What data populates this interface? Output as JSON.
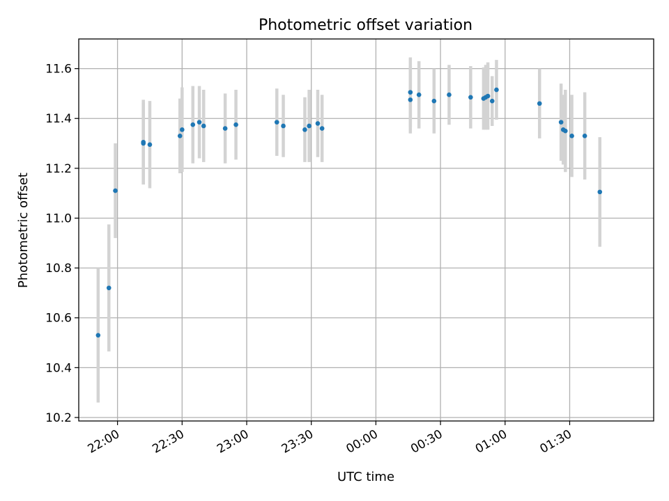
{
  "chart_data": {
    "type": "scatter",
    "title": "Photometric offset variation",
    "xlabel": "UTC time",
    "ylabel": "Photometric offset",
    "grid": true,
    "ylim": [
      10.186,
      11.719
    ],
    "xlim": [
      "21:42",
      "02:09"
    ],
    "yticks": [
      "10.2",
      "10.4",
      "10.6",
      "10.8",
      "11.0",
      "11.2",
      "11.4",
      "11.6"
    ],
    "xticks": [
      "22:00",
      "22:30",
      "23:00",
      "23:30",
      "00:00",
      "00:30",
      "01:00",
      "01:30"
    ],
    "colors": {
      "point": "#1f77b4",
      "errorbar": "#d3d3d3",
      "grid": "#b0b0b0",
      "frame": "#000000"
    },
    "series": [
      {
        "points": [
          {
            "x": "21:51",
            "y": 10.53,
            "err": 0.27
          },
          {
            "x": "21:56",
            "y": 10.72,
            "err": 0.255
          },
          {
            "x": "21:59",
            "y": 11.11,
            "err": 0.19
          },
          {
            "x": "22:12",
            "y": 11.305,
            "err": 0.17
          },
          {
            "x": "22:12",
            "y": 11.3,
            "err": 0.165
          },
          {
            "x": "22:15",
            "y": 11.295,
            "err": 0.175
          },
          {
            "x": "22:29",
            "y": 11.33,
            "err": 0.15
          },
          {
            "x": "22:30",
            "y": 11.355,
            "err": 0.17
          },
          {
            "x": "22:35",
            "y": 11.375,
            "err": 0.155
          },
          {
            "x": "22:38",
            "y": 11.385,
            "err": 0.145
          },
          {
            "x": "22:40",
            "y": 11.37,
            "err": 0.145
          },
          {
            "x": "22:50",
            "y": 11.36,
            "err": 0.14
          },
          {
            "x": "22:55",
            "y": 11.375,
            "err": 0.14
          },
          {
            "x": "23:14",
            "y": 11.385,
            "err": 0.135
          },
          {
            "x": "23:17",
            "y": 11.37,
            "err": 0.125
          },
          {
            "x": "23:27",
            "y": 11.355,
            "err": 0.13
          },
          {
            "x": "23:29",
            "y": 11.37,
            "err": 0.145
          },
          {
            "x": "23:33",
            "y": 11.38,
            "err": 0.135
          },
          {
            "x": "23:35",
            "y": 11.36,
            "err": 0.135
          },
          {
            "x": "00:16",
            "y": 11.475,
            "err": 0.135
          },
          {
            "x": "00:16",
            "y": 11.505,
            "err": 0.14
          },
          {
            "x": "00:20",
            "y": 11.495,
            "err": 0.135
          },
          {
            "x": "00:27",
            "y": 11.47,
            "err": 0.13
          },
          {
            "x": "00:34",
            "y": 11.495,
            "err": 0.12
          },
          {
            "x": "00:44",
            "y": 11.485,
            "err": 0.125
          },
          {
            "x": "00:50",
            "y": 11.48,
            "err": 0.125
          },
          {
            "x": "00:51",
            "y": 11.485,
            "err": 0.13
          },
          {
            "x": "00:52",
            "y": 11.49,
            "err": 0.135
          },
          {
            "x": "00:54",
            "y": 11.47,
            "err": 0.1
          },
          {
            "x": "00:56",
            "y": 11.515,
            "err": 0.12
          },
          {
            "x": "01:16",
            "y": 11.46,
            "err": 0.14
          },
          {
            "x": "01:26",
            "y": 11.385,
            "err": 0.155
          },
          {
            "x": "01:27",
            "y": 11.355,
            "err": 0.14
          },
          {
            "x": "01:28",
            "y": 11.35,
            "err": 0.165
          },
          {
            "x": "01:31",
            "y": 11.33,
            "err": 0.165
          },
          {
            "x": "01:37",
            "y": 11.33,
            "err": 0.175
          },
          {
            "x": "01:44",
            "y": 11.105,
            "err": 0.22
          }
        ]
      }
    ]
  }
}
